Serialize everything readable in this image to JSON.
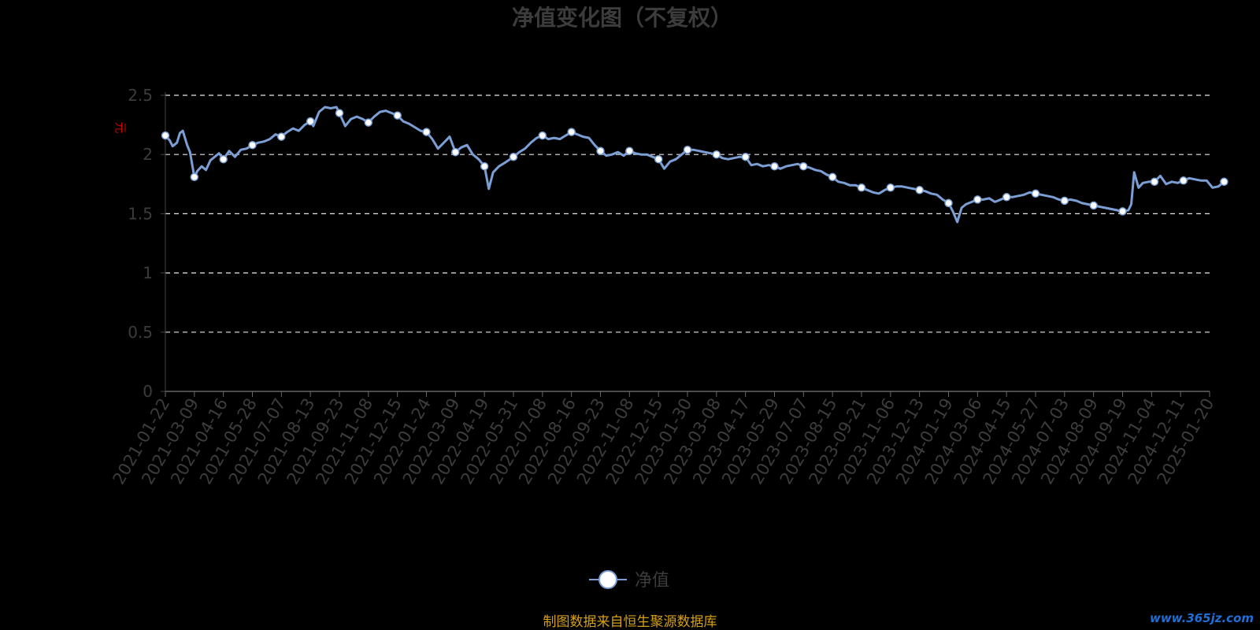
{
  "chart_data": {
    "type": "line",
    "title": "净值变化图（不复权）",
    "ylabel": "元",
    "xlabel": "",
    "ylim": [
      0,
      2.5
    ],
    "yticks": [
      "0",
      "0.5",
      "1",
      "1.5",
      "2",
      "2.5"
    ],
    "grid": true,
    "legend_position": "bottom-center",
    "categories": [
      "2021-01-22",
      "2021-03-09",
      "2021-04-16",
      "2021-05-28",
      "2021-07-07",
      "2021-08-13",
      "2021-09-23",
      "2021-11-08",
      "2021-12-15",
      "2022-01-24",
      "2022-03-09",
      "2022-04-19",
      "2022-05-31",
      "2022-07-08",
      "2022-08-16",
      "2022-09-23",
      "2022-11-08",
      "2022-12-15",
      "2023-01-30",
      "2023-03-08",
      "2023-04-17",
      "2023-05-29",
      "2023-07-07",
      "2023-08-15",
      "2023-09-21",
      "2023-11-06",
      "2023-12-13",
      "2024-01-19",
      "2024-03-06",
      "2024-04-15",
      "2024-05-27",
      "2024-07-03",
      "2024-08-09",
      "2024-09-19",
      "2024-11-04",
      "2024-12-11",
      "2025-01-20"
    ],
    "series": [
      {
        "name": "净值",
        "color": "#7b9fd4",
        "points": [
          [
            0,
            2.16
          ],
          [
            0.15,
            2.12
          ],
          [
            0.25,
            2.07
          ],
          [
            0.4,
            2.1
          ],
          [
            0.5,
            2.18
          ],
          [
            0.6,
            2.2
          ],
          [
            0.75,
            2.08
          ],
          [
            0.85,
            2.02
          ],
          [
            1.0,
            1.81
          ],
          [
            1.1,
            1.86
          ],
          [
            1.25,
            1.9
          ],
          [
            1.4,
            1.87
          ],
          [
            1.55,
            1.95
          ],
          [
            1.7,
            1.98
          ],
          [
            1.85,
            2.01
          ],
          [
            2.0,
            1.96
          ],
          [
            2.2,
            2.03
          ],
          [
            2.4,
            1.98
          ],
          [
            2.6,
            2.04
          ],
          [
            2.8,
            2.05
          ],
          [
            3.0,
            2.08
          ],
          [
            3.2,
            2.1
          ],
          [
            3.4,
            2.11
          ],
          [
            3.6,
            2.13
          ],
          [
            3.8,
            2.17
          ],
          [
            4.0,
            2.15
          ],
          [
            4.2,
            2.19
          ],
          [
            4.4,
            2.22
          ],
          [
            4.6,
            2.2
          ],
          [
            4.8,
            2.25
          ],
          [
            5.0,
            2.28
          ],
          [
            5.1,
            2.24
          ],
          [
            5.3,
            2.36
          ],
          [
            5.5,
            2.4
          ],
          [
            5.7,
            2.39
          ],
          [
            5.9,
            2.4
          ],
          [
            6.0,
            2.35
          ],
          [
            6.2,
            2.24
          ],
          [
            6.4,
            2.3
          ],
          [
            6.6,
            2.32
          ],
          [
            6.8,
            2.3
          ],
          [
            7.0,
            2.27
          ],
          [
            7.2,
            2.32
          ],
          [
            7.4,
            2.36
          ],
          [
            7.6,
            2.37
          ],
          [
            7.8,
            2.35
          ],
          [
            8.0,
            2.33
          ],
          [
            8.2,
            2.28
          ],
          [
            8.4,
            2.26
          ],
          [
            8.6,
            2.23
          ],
          [
            8.8,
            2.2
          ],
          [
            9.0,
            2.19
          ],
          [
            9.2,
            2.13
          ],
          [
            9.4,
            2.05
          ],
          [
            9.6,
            2.1
          ],
          [
            9.8,
            2.15
          ],
          [
            10.0,
            2.02
          ],
          [
            10.2,
            2.06
          ],
          [
            10.4,
            2.08
          ],
          [
            10.6,
            2.0
          ],
          [
            10.8,
            1.96
          ],
          [
            11.0,
            1.9
          ],
          [
            11.15,
            1.71
          ],
          [
            11.3,
            1.85
          ],
          [
            11.5,
            1.9
          ],
          [
            11.7,
            1.93
          ],
          [
            12.0,
            1.98
          ],
          [
            12.2,
            2.02
          ],
          [
            12.4,
            2.05
          ],
          [
            12.6,
            2.1
          ],
          [
            12.8,
            2.14
          ],
          [
            13.0,
            2.16
          ],
          [
            13.2,
            2.13
          ],
          [
            13.4,
            2.14
          ],
          [
            13.6,
            2.13
          ],
          [
            13.8,
            2.16
          ],
          [
            14.0,
            2.19
          ],
          [
            14.2,
            2.17
          ],
          [
            14.4,
            2.15
          ],
          [
            14.6,
            2.14
          ],
          [
            14.8,
            2.08
          ],
          [
            15.0,
            2.03
          ],
          [
            15.2,
            1.99
          ],
          [
            15.4,
            2.0
          ],
          [
            15.6,
            2.02
          ],
          [
            15.8,
            1.99
          ],
          [
            16.0,
            2.03
          ],
          [
            16.2,
            2.01
          ],
          [
            16.4,
            2.0
          ],
          [
            16.6,
            2.0
          ],
          [
            16.8,
            1.98
          ],
          [
            17.0,
            1.96
          ],
          [
            17.2,
            1.88
          ],
          [
            17.4,
            1.94
          ],
          [
            17.6,
            1.96
          ],
          [
            17.8,
            2.0
          ],
          [
            18.0,
            2.04
          ],
          [
            18.2,
            2.04
          ],
          [
            18.4,
            2.03
          ],
          [
            18.6,
            2.02
          ],
          [
            18.8,
            2.01
          ],
          [
            19.0,
            2.0
          ],
          [
            19.2,
            1.97
          ],
          [
            19.4,
            1.96
          ],
          [
            19.6,
            1.97
          ],
          [
            19.8,
            1.98
          ],
          [
            20.0,
            1.98
          ],
          [
            20.2,
            1.91
          ],
          [
            20.4,
            1.92
          ],
          [
            20.6,
            1.9
          ],
          [
            20.8,
            1.91
          ],
          [
            21.0,
            1.9
          ],
          [
            21.2,
            1.88
          ],
          [
            21.4,
            1.9
          ],
          [
            21.6,
            1.91
          ],
          [
            21.8,
            1.92
          ],
          [
            22.0,
            1.9
          ],
          [
            22.2,
            1.89
          ],
          [
            22.4,
            1.87
          ],
          [
            22.6,
            1.86
          ],
          [
            22.8,
            1.83
          ],
          [
            23.0,
            1.81
          ],
          [
            23.2,
            1.77
          ],
          [
            23.4,
            1.76
          ],
          [
            23.6,
            1.74
          ],
          [
            23.8,
            1.74
          ],
          [
            24.0,
            1.72
          ],
          [
            24.2,
            1.7
          ],
          [
            24.4,
            1.68
          ],
          [
            24.6,
            1.67
          ],
          [
            24.8,
            1.7
          ],
          [
            25.0,
            1.72
          ],
          [
            25.2,
            1.73
          ],
          [
            25.4,
            1.73
          ],
          [
            25.6,
            1.72
          ],
          [
            25.8,
            1.71
          ],
          [
            26.0,
            1.7
          ],
          [
            26.2,
            1.69
          ],
          [
            26.4,
            1.67
          ],
          [
            26.6,
            1.66
          ],
          [
            26.8,
            1.62
          ],
          [
            27.0,
            1.59
          ],
          [
            27.15,
            1.52
          ],
          [
            27.3,
            1.43
          ],
          [
            27.45,
            1.55
          ],
          [
            27.6,
            1.58
          ],
          [
            27.8,
            1.6
          ],
          [
            28.0,
            1.62
          ],
          [
            28.2,
            1.62
          ],
          [
            28.4,
            1.63
          ],
          [
            28.6,
            1.6
          ],
          [
            28.8,
            1.62
          ],
          [
            29.0,
            1.64
          ],
          [
            29.2,
            1.64
          ],
          [
            29.4,
            1.65
          ],
          [
            29.6,
            1.66
          ],
          [
            29.8,
            1.68
          ],
          [
            30.0,
            1.67
          ],
          [
            30.2,
            1.66
          ],
          [
            30.4,
            1.65
          ],
          [
            30.6,
            1.64
          ],
          [
            30.8,
            1.62
          ],
          [
            31.0,
            1.61
          ],
          [
            31.2,
            1.62
          ],
          [
            31.4,
            1.61
          ],
          [
            31.6,
            1.59
          ],
          [
            31.8,
            1.58
          ],
          [
            32.0,
            1.57
          ],
          [
            32.2,
            1.56
          ],
          [
            32.4,
            1.55
          ],
          [
            32.6,
            1.54
          ],
          [
            32.8,
            1.53
          ],
          [
            33.0,
            1.52
          ],
          [
            33.2,
            1.53
          ],
          [
            33.3,
            1.58
          ],
          [
            33.4,
            1.85
          ],
          [
            33.55,
            1.72
          ],
          [
            33.7,
            1.76
          ],
          [
            33.9,
            1.77
          ],
          [
            34.1,
            1.77
          ],
          [
            34.3,
            1.82
          ],
          [
            34.5,
            1.75
          ],
          [
            34.7,
            1.77
          ],
          [
            34.9,
            1.76
          ],
          [
            35.1,
            1.78
          ],
          [
            35.3,
            1.8
          ],
          [
            35.5,
            1.79
          ],
          [
            35.7,
            1.78
          ],
          [
            35.9,
            1.78
          ],
          [
            36.1,
            1.72
          ],
          [
            36.3,
            1.73
          ],
          [
            36.5,
            1.77
          ]
        ],
        "markers": [
          [
            0,
            2.16
          ],
          [
            1.0,
            1.81
          ],
          [
            2.0,
            1.96
          ],
          [
            3.0,
            2.08
          ],
          [
            4.0,
            2.15
          ],
          [
            5.0,
            2.28
          ],
          [
            6.0,
            2.35
          ],
          [
            7.0,
            2.27
          ],
          [
            8.0,
            2.33
          ],
          [
            9.0,
            2.19
          ],
          [
            10.0,
            2.02
          ],
          [
            11.0,
            1.9
          ],
          [
            12.0,
            1.98
          ],
          [
            13.0,
            2.16
          ],
          [
            14.0,
            2.19
          ],
          [
            15.0,
            2.03
          ],
          [
            16.0,
            2.03
          ],
          [
            17.0,
            1.96
          ],
          [
            18.0,
            2.04
          ],
          [
            19.0,
            2.0
          ],
          [
            20.0,
            1.98
          ],
          [
            21.0,
            1.9
          ],
          [
            22.0,
            1.9
          ],
          [
            23.0,
            1.81
          ],
          [
            24.0,
            1.72
          ],
          [
            25.0,
            1.72
          ],
          [
            26.0,
            1.7
          ],
          [
            27.0,
            1.59
          ],
          [
            28.0,
            1.62
          ],
          [
            29.0,
            1.64
          ],
          [
            30.0,
            1.67
          ],
          [
            31.0,
            1.61
          ],
          [
            32.0,
            1.57
          ],
          [
            33.0,
            1.52
          ],
          [
            34.1,
            1.77
          ],
          [
            35.1,
            1.78
          ],
          [
            36.5,
            1.77
          ]
        ]
      }
    ]
  },
  "legend": {
    "label": "净值"
  },
  "footer": {
    "source": "制图数据来自恒生聚源数据库",
    "watermark": "www.365jz.com"
  }
}
